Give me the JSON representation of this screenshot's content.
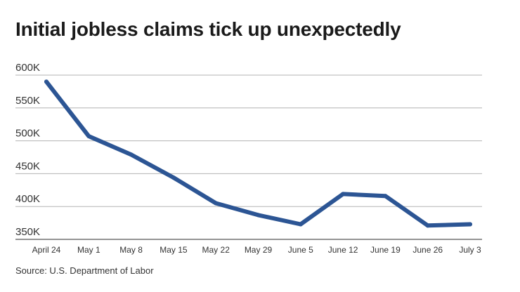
{
  "colors": {
    "line": "#2c5594",
    "grid": "#b3b3b3",
    "axis": "#555555"
  },
  "source": "Source: U.S. Department of Labor",
  "chart_data": {
    "type": "line",
    "title": "Initial jobless claims tick up unexpectedly",
    "xlabel": "",
    "ylabel": "",
    "categories": [
      "April 24",
      "May 1",
      "May 8",
      "May 15",
      "May 22",
      "May 29",
      "June 5",
      "June 12",
      "June 19",
      "June 26",
      "July 3"
    ],
    "yticks": [
      600000,
      550000,
      500000,
      450000,
      400000,
      350000
    ],
    "ytick_labels": [
      "600K",
      "550K",
      "500K",
      "450K",
      "400K",
      "350K"
    ],
    "ylim": [
      350000,
      600000
    ],
    "grid": true,
    "legend": "none",
    "series": [
      {
        "values": [
          590000,
          507000,
          479000,
          444000,
          405000,
          387000,
          373000,
          419000,
          416000,
          371000,
          373000
        ]
      }
    ]
  }
}
